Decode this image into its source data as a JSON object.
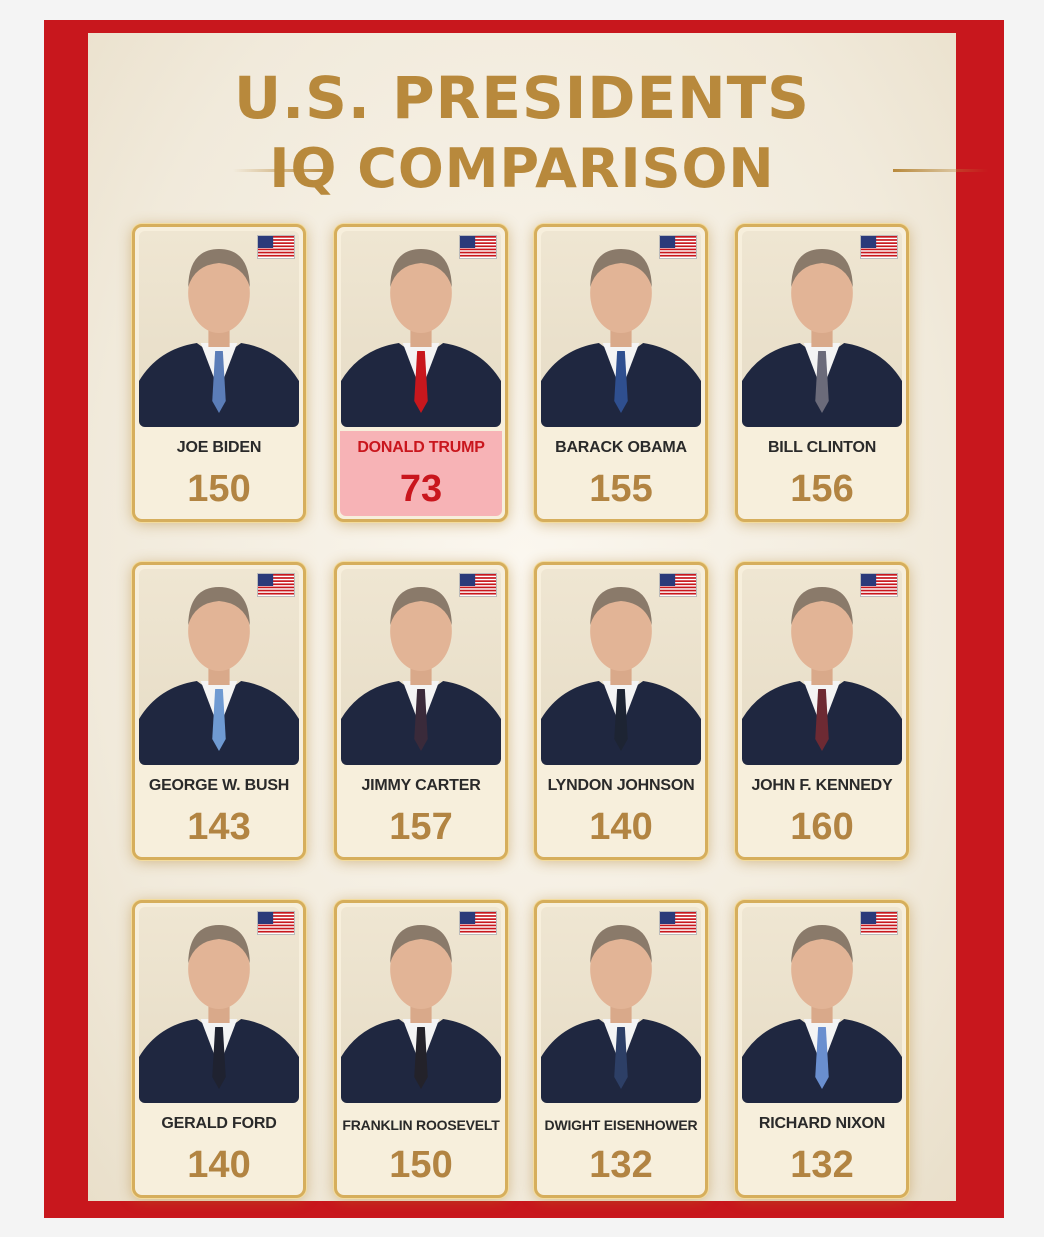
{
  "title": {
    "line1": "U.S. PRESIDENTS",
    "line2": "IQ COMPARISON"
  },
  "colors": {
    "frame": "#c8171d",
    "gold": "#b8893c",
    "highlight_bg": "#f7b3b6",
    "highlight_text": "#c9161d"
  },
  "cards": [
    {
      "name": "JOE BIDEN",
      "iq": "150",
      "tie": "#5b7db8"
    },
    {
      "name": "DONALD TRUMP",
      "iq": "73",
      "tie": "#c8171d",
      "highlight": true
    },
    {
      "name": "BARACK OBAMA",
      "iq": "155",
      "tie": "#2f4f8f"
    },
    {
      "name": "BILL CLINTON",
      "iq": "156",
      "tie": "#6b6b7a"
    },
    {
      "name": "GEORGE W. BUSH",
      "iq": "143",
      "tie": "#6f9ad2"
    },
    {
      "name": "JIMMY CARTER",
      "iq": "157",
      "tie": "#3a2a3a"
    },
    {
      "name": "LYNDON JOHNSON",
      "iq": "140",
      "tie": "#1d2433"
    },
    {
      "name": "JOHN F. KENNEDY",
      "iq": "160",
      "tie": "#6d2a33"
    },
    {
      "name": "GERALD FORD",
      "iq": "140",
      "tie": "#1f2230"
    },
    {
      "name": "FRANKLIN ROOSEVELT",
      "iq": "150",
      "tie": "#23222a"
    },
    {
      "name": "DWIGHT EISENHOWER",
      "iq": "132",
      "tie": "#2d3f66"
    },
    {
      "name": "RICHARD NIXON",
      "iq": "132",
      "tie": "#6a8fcf"
    }
  ]
}
